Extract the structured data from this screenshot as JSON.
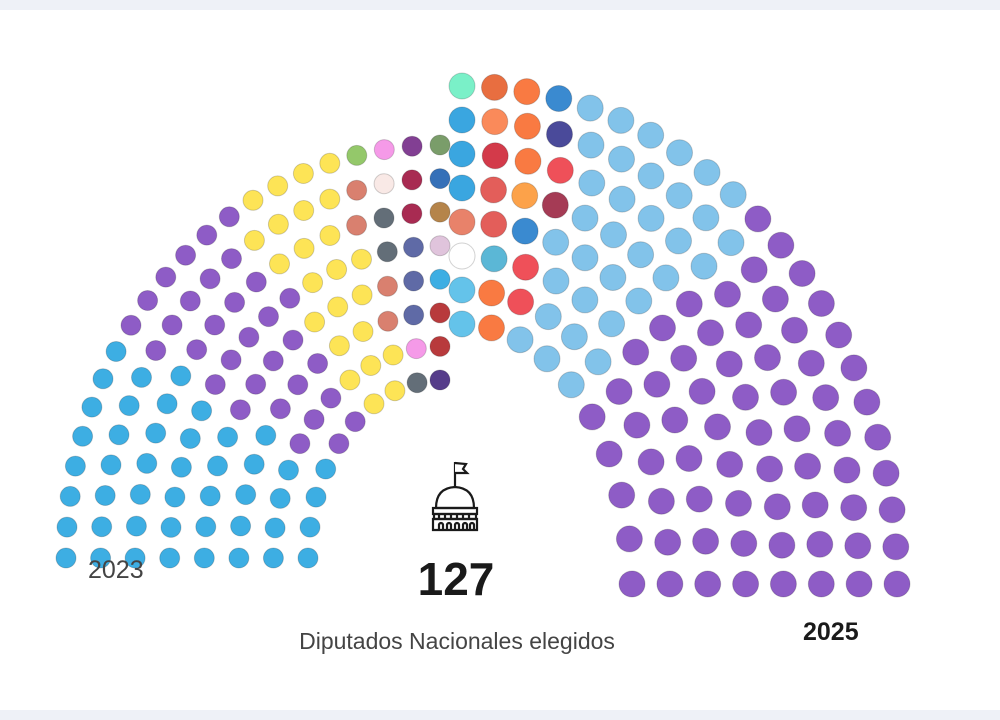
{
  "chart_data": [
    {
      "type": "parliament",
      "label": "2023",
      "total_seats": 127,
      "rows": 8,
      "seat_groups": [
        {
          "color": "#3daee3",
          "seats": 46
        },
        {
          "color": "#8e5cc6",
          "seats": 32
        },
        {
          "color": "#fde456",
          "seats": 24
        },
        {
          "color": "#d9806f",
          "seats": 4
        },
        {
          "color": "#94c86a",
          "seats": 1
        },
        {
          "color": "#636e78",
          "seats": 3
        },
        {
          "color": "#f9e9e6",
          "seats": 1
        },
        {
          "color": "#f59ae8",
          "seats": 2
        },
        {
          "color": "#5f6aa6",
          "seats": 3
        },
        {
          "color": "#a82b52",
          "seats": 2
        },
        {
          "color": "#823f93",
          "seats": 1
        },
        {
          "color": "#563d8a",
          "seats": 1
        },
        {
          "color": "#b83a3c",
          "seats": 2
        },
        {
          "color": "#3daee3",
          "seats": 1
        },
        {
          "color": "#e0c4dc",
          "seats": 1
        },
        {
          "color": "#b5844a",
          "seats": 1
        },
        {
          "color": "#3570b8",
          "seats": 1
        },
        {
          "color": "#7a9d6a",
          "seats": 1
        },
        {
          "color": "#f87880",
          "seats": 1
        }
      ]
    },
    {
      "type": "parliament",
      "label": "2025",
      "total_seats": 127,
      "rows": 8,
      "seat_groups": [
        {
          "color": "#64c3ea",
          "seats": 2
        },
        {
          "color": "#ffffff",
          "seats": 1
        },
        {
          "color": "#e8826a",
          "seats": 1
        },
        {
          "color": "#3aa6e0",
          "seats": 3
        },
        {
          "color": "#7af0c8",
          "seats": 1
        },
        {
          "color": "#e86e40",
          "seats": 1
        },
        {
          "color": "#fa8a5a",
          "seats": 1
        },
        {
          "color": "#d33a4a",
          "seats": 1
        },
        {
          "color": "#e35e5a",
          "seats": 2
        },
        {
          "color": "#5bb7d6",
          "seats": 1
        },
        {
          "color": "#f97a42",
          "seats": 5
        },
        {
          "color": "#fca24a",
          "seats": 1
        },
        {
          "color": "#3a8ad0",
          "seats": 2
        },
        {
          "color": "#4a4a9a",
          "seats": 1
        },
        {
          "color": "#ef5059",
          "seats": 3
        },
        {
          "color": "#a53b55",
          "seats": 1
        },
        {
          "color": "#82c3ea",
          "seats": 34
        },
        {
          "color": "#8e5cc6",
          "seats": 66
        }
      ]
    }
  ],
  "labels": {
    "year_left": "2023",
    "year_right": "2025",
    "total": "127",
    "caption": "Diputados Nacionales elegidos"
  },
  "icons": {
    "center": "capitol-building-icon"
  }
}
